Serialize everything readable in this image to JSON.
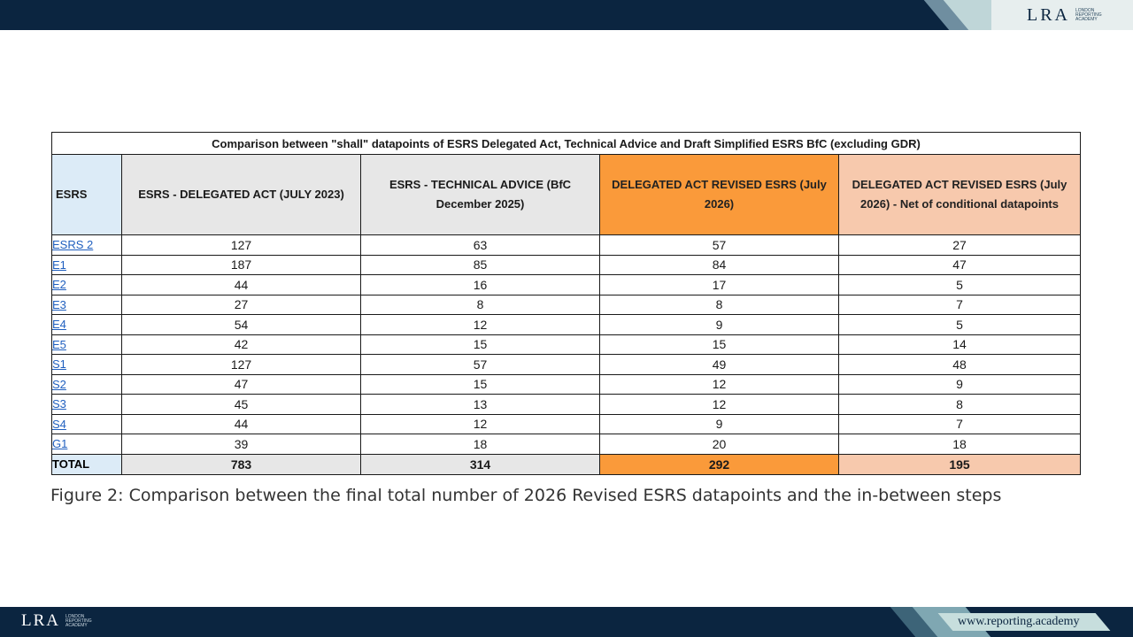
{
  "header": {
    "logo": "LRA",
    "logo_sub": "LONDON REPORTING ACADEMY"
  },
  "table": {
    "title": "Comparison between \"shall\" datapoints of ESRS Delegated Act, Technical Advice and Draft Simplified ESRS BfC (excluding GDR)",
    "columns": [
      "ESRS",
      "ESRS - DELEGATED ACT (JULY 2023)",
      "ESRS - TECHNICAL ADVICE (BfC December 2025)",
      "DELEGATED ACT REVISED ESRS (July 2026)",
      "DELEGATED ACT REVISED ESRS (July 2026) - Net of conditional datapoints"
    ],
    "rows": [
      {
        "name": "ESRS 2",
        "v": [
          "127",
          "63",
          "57",
          "27"
        ]
      },
      {
        "name": "E1",
        "v": [
          "187",
          "85",
          "84",
          "47"
        ]
      },
      {
        "name": "E2",
        "v": [
          "44",
          "16",
          "17",
          "5"
        ]
      },
      {
        "name": "E3",
        "v": [
          "27",
          "8",
          "8",
          "7"
        ]
      },
      {
        "name": "E4",
        "v": [
          "54",
          "12",
          "9",
          "5"
        ]
      },
      {
        "name": "E5",
        "v": [
          "42",
          "15",
          "15",
          "14"
        ]
      },
      {
        "name": "S1",
        "v": [
          "127",
          "57",
          "49",
          "48"
        ]
      },
      {
        "name": "S2",
        "v": [
          "47",
          "15",
          "12",
          "9"
        ]
      },
      {
        "name": "S3",
        "v": [
          "45",
          "13",
          "12",
          "8"
        ]
      },
      {
        "name": "S4",
        "v": [
          "44",
          "12",
          "9",
          "7"
        ]
      },
      {
        "name": "G1",
        "v": [
          "39",
          "18",
          "20",
          "18"
        ]
      }
    ],
    "total": {
      "name": "TOTAL",
      "v": [
        "783",
        "314",
        "292",
        "195"
      ]
    }
  },
  "caption": "Figure 2: Comparison between the final total number of 2026 Revised ESRS datapoints and the in-between steps",
  "footer": {
    "logo": "LRA",
    "logo_sub": "LONDON REPORTING ACADEMY",
    "url": "www.reporting.academy"
  },
  "colors": {
    "navy": "#0b2540",
    "orange": "#fa9a3a",
    "peach": "#f7c9ad",
    "grey": "#e7e7e7",
    "lightblue": "#dcebf7",
    "link": "#1f5fbf"
  }
}
